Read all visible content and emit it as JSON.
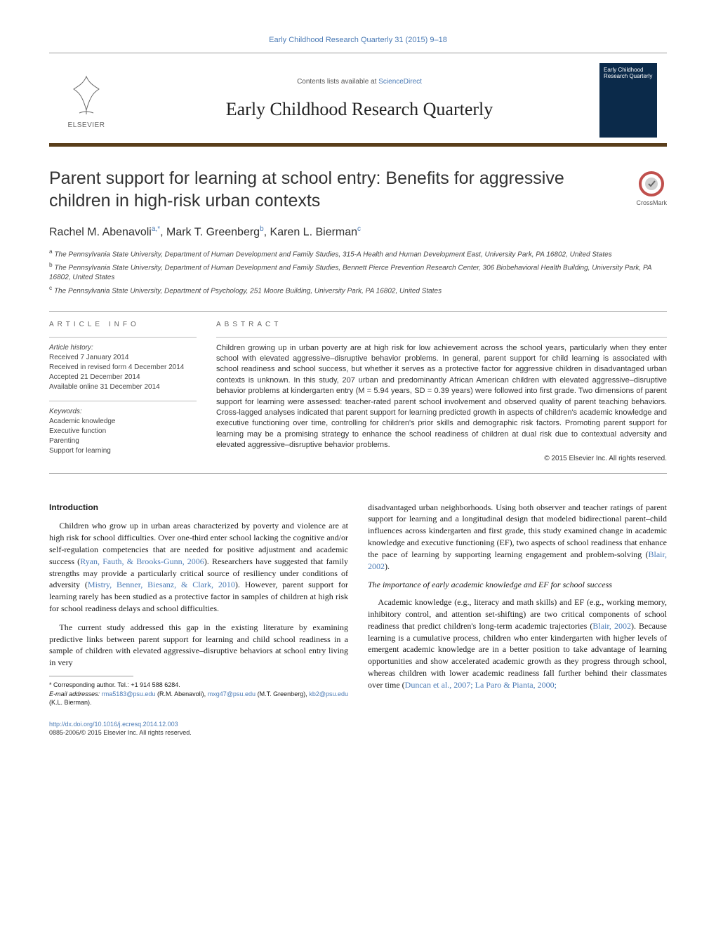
{
  "journal_ref": "Early Childhood Research Quarterly 31 (2015) 9–18",
  "masthead": {
    "contents_prefix": "Contents lists available at ",
    "contents_link": "ScienceDirect",
    "journal_title": "Early Childhood Research Quarterly",
    "publisher": "ELSEVIER",
    "cover_text": "Early Childhood Research Quarterly"
  },
  "colors": {
    "link": "#4a7ab5",
    "rule": "#5a3e1b",
    "cover_bg": "#0b2a4a",
    "crossmark_ring": "#c0504d"
  },
  "crossmark_label": "CrossMark",
  "title": "Parent support for learning at school entry: Benefits for aggressive children in high-risk urban contexts",
  "authors_html": "Rachel M. Abenavoli<sup>a,*</sup>, Mark T. Greenberg<sup>b</sup>, Karen L. Bierman<sup>c</sup>",
  "affiliations": [
    {
      "sup": "a",
      "text": "The Pennsylvania State University, Department of Human Development and Family Studies, 315-A Health and Human Development East, University Park, PA 16802, United States"
    },
    {
      "sup": "b",
      "text": "The Pennsylvania State University, Department of Human Development and Family Studies, Bennett Pierce Prevention Research Center, 306 Biobehavioral Health Building, University Park, PA 16802, United States"
    },
    {
      "sup": "c",
      "text": "The Pennsylvania State University, Department of Psychology, 251 Moore Building, University Park, PA 16802, United States"
    }
  ],
  "article_info": {
    "heading": "ARTICLE INFO",
    "history_label": "Article history:",
    "history": [
      "Received 7 January 2014",
      "Received in revised form 4 December 2014",
      "Accepted 21 December 2014",
      "Available online 31 December 2014"
    ],
    "keywords_label": "Keywords:",
    "keywords": [
      "Academic knowledge",
      "Executive function",
      "Parenting",
      "Support for learning"
    ]
  },
  "abstract": {
    "heading": "ABSTRACT",
    "text": "Children growing up in urban poverty are at high risk for low achievement across the school years, particularly when they enter school with elevated aggressive–disruptive behavior problems. In general, parent support for child learning is associated with school readiness and school success, but whether it serves as a protective factor for aggressive children in disadvantaged urban contexts is unknown. In this study, 207 urban and predominantly African American children with elevated aggressive–disruptive behavior problems at kindergarten entry (M = 5.94 years, SD = 0.39 years) were followed into first grade. Two dimensions of parent support for learning were assessed: teacher-rated parent school involvement and observed quality of parent teaching behaviors. Cross-lagged analyses indicated that parent support for learning predicted growth in aspects of children's academic knowledge and executive functioning over time, controlling for children's prior skills and demographic risk factors. Promoting parent support for learning may be a promising strategy to enhance the school readiness of children at dual risk due to contextual adversity and elevated aggressive–disruptive behavior problems.",
    "copyright": "© 2015 Elsevier Inc. All rights reserved."
  },
  "body": {
    "intro_heading": "Introduction",
    "p1": "Children who grow up in urban areas characterized by poverty and violence are at high risk for school difficulties. Over one-third enter school lacking the cognitive and/or self-regulation competencies that are needed for positive adjustment and academic success (",
    "p1_cite": "Ryan, Fauth, & Brooks-Gunn, 2006",
    "p1b": "). Researchers have suggested that family strengths may provide a particularly critical source of resiliency under conditions of adversity (",
    "p1_cite2": "Mistry, Benner, Biesanz, & Clark, 2010",
    "p1c": "). However, parent support for learning rarely has been studied as a protective factor in samples of children at high risk for school readiness delays and school difficulties.",
    "p2": "The current study addressed this gap in the existing literature by examining predictive links between parent support for learning and child school readiness in a sample of children with elevated aggressive–disruptive behaviors at school entry living in very disadvantaged urban neighborhoods. Using both observer and teacher ratings of parent support for learning and a longitudinal design that modeled bidirectional parent–child influences across kindergarten and first grade, this study examined change in academic knowledge and executive functioning (EF), two aspects of school readiness that enhance the pace of learning by supporting learning engagement and problem-solving (",
    "p2_cite": "Blair, 2002",
    "p2b": ").",
    "sub_heading": "The importance of early academic knowledge and EF for school success",
    "p3": "Academic knowledge (e.g., literacy and math skills) and EF (e.g., working memory, inhibitory control, and attention set-shifting) are two critical components of school readiness that predict children's long-term academic trajectories (",
    "p3_cite": "Blair, 2002",
    "p3b": "). Because learning is a cumulative process, children who enter kindergarten with higher levels of emergent academic knowledge are in a better position to take advantage of learning opportunities and show accelerated academic growth as they progress through school, whereas children with lower academic readiness fall further behind their classmates over time (",
    "p3_cite2": "Duncan et al., 2007; La Paro & Pianta, 2000;"
  },
  "footer": {
    "corresp_label": "* Corresponding author. Tel.: +1 914 588 6284.",
    "email_label": "E-mail addresses:",
    "emails": [
      {
        "addr": "rma5183@psu.edu",
        "who": "(R.M. Abenavoli)"
      },
      {
        "addr": "mxg47@psu.edu",
        "who": "(M.T. Greenberg)"
      },
      {
        "addr": "kb2@psu.edu",
        "who": "(K.L. Bierman)"
      }
    ],
    "doi_url": "http://dx.doi.org/10.1016/j.ecresq.2014.12.003",
    "issn_line": "0885-2006/© 2015 Elsevier Inc. All rights reserved."
  }
}
